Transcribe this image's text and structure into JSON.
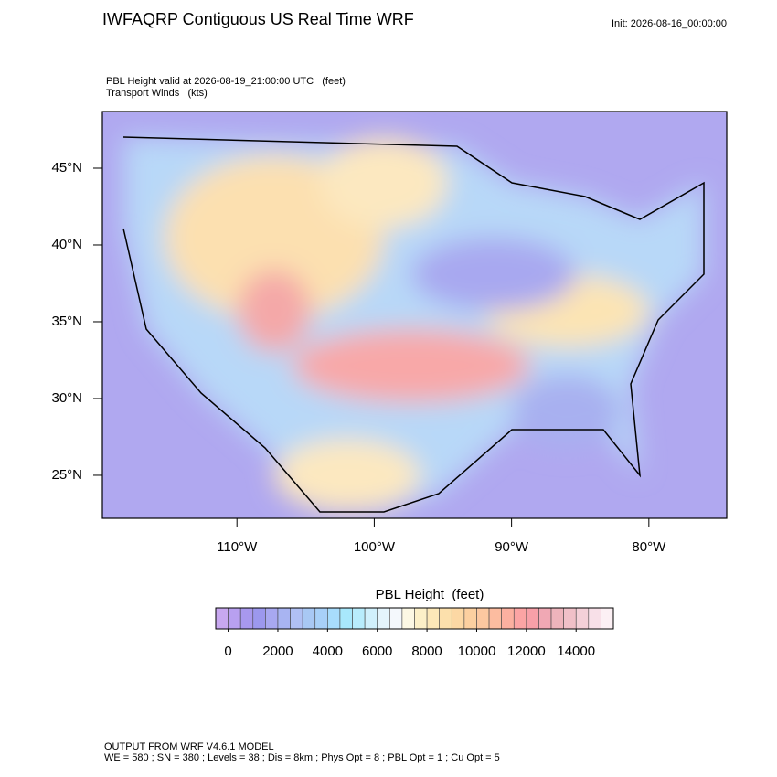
{
  "header": {
    "title": "IWFAQRP Contiguous US Real Time WRF",
    "init": "Init: 2026-08-16_00:00:00",
    "subtitle": [
      "PBL Height valid at 2026-08-19_21:00:00 UTC   (feet)",
      "Transport Winds   (kts)"
    ]
  },
  "map": {
    "lonlim": [
      -119.8,
      -74.33
    ],
    "latlim": [
      22.2,
      48.69
    ],
    "xticks": [
      {
        "value": -110,
        "label": "110°W"
      },
      {
        "value": -100,
        "label": "100°W"
      },
      {
        "value": -90,
        "label": "90°W"
      },
      {
        "value": -80,
        "label": "80°W"
      }
    ],
    "yticks": [
      {
        "value": 45,
        "label": "45°N"
      },
      {
        "value": 40,
        "label": "40°N"
      },
      {
        "value": 35,
        "label": "35°N"
      },
      {
        "value": 30,
        "label": "30°N"
      },
      {
        "value": 25,
        "label": "25°N"
      }
    ]
  },
  "colorbar": {
    "title": "PBL Height  (feet)",
    "lim": [
      -500,
      15500
    ],
    "ticks": [
      0,
      2000,
      4000,
      6000,
      8000,
      10000,
      12000,
      14000
    ],
    "colors": [
      "#c8a8f0",
      "#b8a0f0",
      "#a898ee",
      "#9c98ee",
      "#a8a8f0",
      "#a8b4f2",
      "#b0c0f4",
      "#a8c8f4",
      "#a8d0f8",
      "#a8dcfc",
      "#a8e8fc",
      "#b8ecfc",
      "#d0f0fc",
      "#e4f4fc",
      "#f4f8fc",
      "#fcf8e4",
      "#fcf0c8",
      "#fce8b8",
      "#fce0ac",
      "#fcd8a4",
      "#fcd0a0",
      "#fcc8a0",
      "#fcbca0",
      "#fcb0a0",
      "#fca4a4",
      "#f8a0a8",
      "#f0a8b4",
      "#eeb4bc",
      "#f0c0c8",
      "#f4d0d8",
      "#f8e0e8",
      "#fcf0f4"
    ]
  },
  "footer": [
    "OUTPUT FROM WRF V4.6.1 MODEL",
    "WE = 580 ; SN = 380 ; Levels = 38 ; Dis = 8km ; Phys Opt = 8 ; PBL Opt = 1 ; Cu Opt = 5"
  ]
}
